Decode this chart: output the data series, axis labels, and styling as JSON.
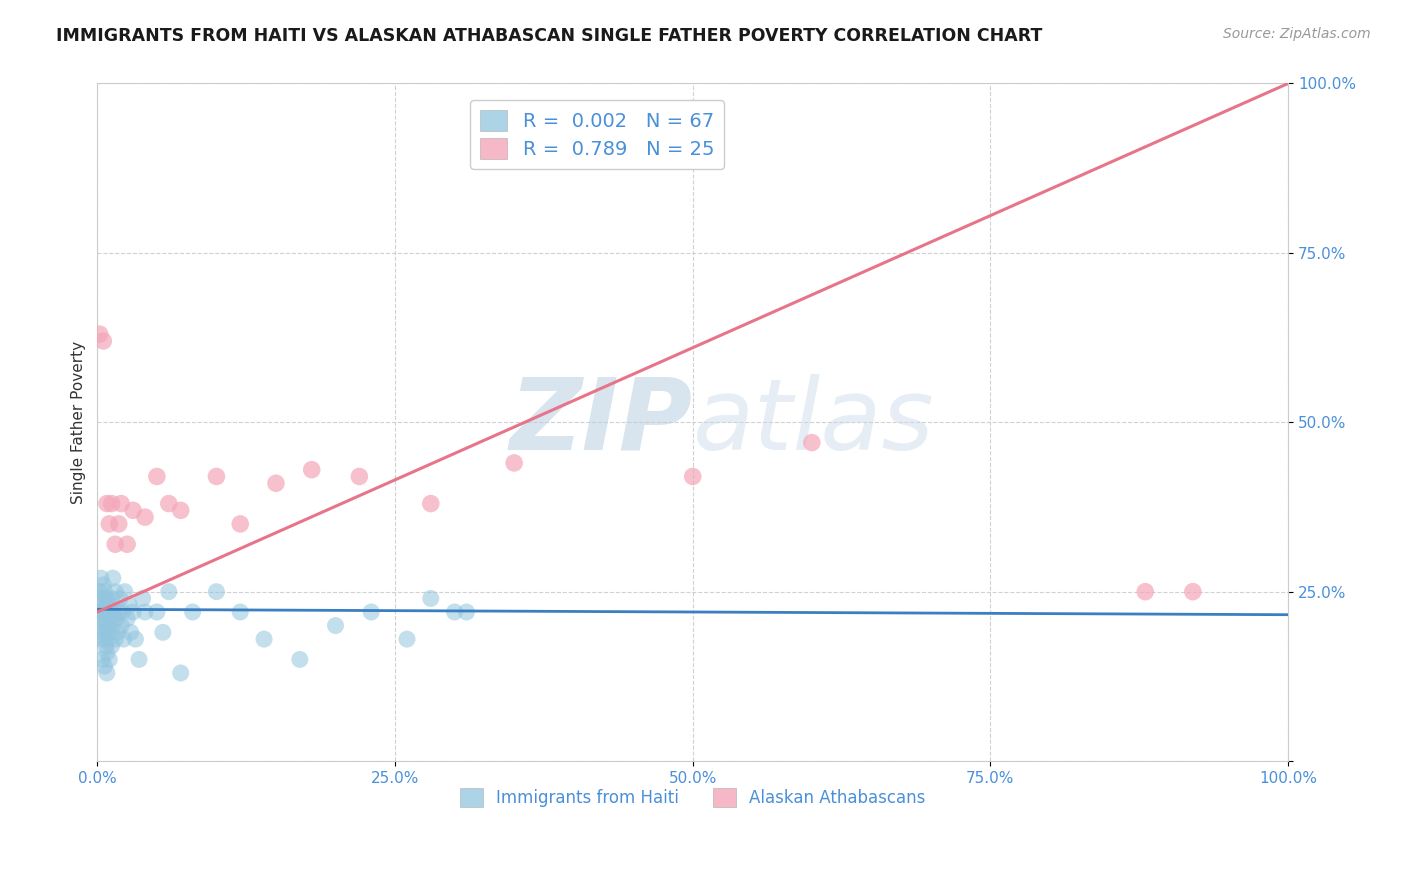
{
  "title": "IMMIGRANTS FROM HAITI VS ALASKAN ATHABASCAN SINGLE FATHER POVERTY CORRELATION CHART",
  "source": "Source: ZipAtlas.com",
  "ylabel": "Single Father Poverty",
  "watermark_zip": "ZIP",
  "watermark_atlas": "atlas",
  "legend_haiti": "Immigrants from Haiti",
  "legend_athabascan": "Alaskan Athabascans",
  "haiti_R": 0.002,
  "haiti_N": 67,
  "athabascan_R": 0.789,
  "athabascan_N": 25,
  "haiti_color": "#92c5de",
  "athabascan_color": "#f4a6b8",
  "haiti_line_color": "#3a7fc1",
  "athabascan_line_color": "#e8748a",
  "background_color": "#ffffff",
  "xlim": [
    0,
    1
  ],
  "ylim": [
    0,
    1
  ],
  "xticks": [
    0.0,
    0.25,
    0.5,
    0.75,
    1.0
  ],
  "yticks": [
    0.0,
    0.25,
    0.5,
    0.75,
    1.0
  ],
  "xticklabels": [
    "0.0%",
    "25.0%",
    "50.0%",
    "75.0%",
    "100.0%"
  ],
  "yticklabels": [
    "",
    "25.0%",
    "50.0%",
    "75.0%",
    "100.0%"
  ],
  "haiti_x": [
    0.001,
    0.002,
    0.002,
    0.003,
    0.003,
    0.003,
    0.004,
    0.004,
    0.004,
    0.005,
    0.005,
    0.005,
    0.006,
    0.006,
    0.006,
    0.006,
    0.007,
    0.007,
    0.007,
    0.008,
    0.008,
    0.008,
    0.008,
    0.009,
    0.009,
    0.01,
    0.01,
    0.01,
    0.011,
    0.012,
    0.012,
    0.013,
    0.013,
    0.014,
    0.015,
    0.015,
    0.016,
    0.017,
    0.018,
    0.019,
    0.02,
    0.021,
    0.022,
    0.023,
    0.025,
    0.027,
    0.028,
    0.03,
    0.032,
    0.035,
    0.038,
    0.04,
    0.05,
    0.055,
    0.06,
    0.07,
    0.08,
    0.1,
    0.12,
    0.14,
    0.17,
    0.2,
    0.23,
    0.26,
    0.28,
    0.3,
    0.31
  ],
  "haiti_y": [
    0.22,
    0.25,
    0.2,
    0.18,
    0.23,
    0.27,
    0.15,
    0.21,
    0.24,
    0.19,
    0.22,
    0.26,
    0.14,
    0.18,
    0.22,
    0.25,
    0.17,
    0.2,
    0.24,
    0.13,
    0.16,
    0.2,
    0.23,
    0.18,
    0.22,
    0.15,
    0.19,
    0.23,
    0.21,
    0.17,
    0.24,
    0.2,
    0.27,
    0.22,
    0.18,
    0.25,
    0.21,
    0.19,
    0.22,
    0.24,
    0.2,
    0.22,
    0.18,
    0.25,
    0.21,
    0.23,
    0.19,
    0.22,
    0.18,
    0.15,
    0.24,
    0.22,
    0.22,
    0.19,
    0.25,
    0.13,
    0.22,
    0.25,
    0.22,
    0.18,
    0.15,
    0.2,
    0.22,
    0.18,
    0.24,
    0.22,
    0.22
  ],
  "athabascan_x": [
    0.002,
    0.005,
    0.008,
    0.01,
    0.012,
    0.015,
    0.018,
    0.02,
    0.025,
    0.03,
    0.04,
    0.05,
    0.06,
    0.07,
    0.1,
    0.12,
    0.15,
    0.18,
    0.22,
    0.28,
    0.35,
    0.5,
    0.6,
    0.88,
    0.92
  ],
  "athabascan_y": [
    0.63,
    0.62,
    0.38,
    0.35,
    0.38,
    0.32,
    0.35,
    0.38,
    0.32,
    0.37,
    0.36,
    0.42,
    0.38,
    0.37,
    0.42,
    0.35,
    0.41,
    0.43,
    0.42,
    0.38,
    0.44,
    0.42,
    0.47,
    0.25,
    0.25
  ],
  "haiti_line_x": [
    0.0,
    1.0
  ],
  "haiti_line_y": [
    0.224,
    0.216
  ],
  "ath_line_x": [
    0.0,
    1.0
  ],
  "ath_line_y": [
    0.22,
    1.0
  ]
}
